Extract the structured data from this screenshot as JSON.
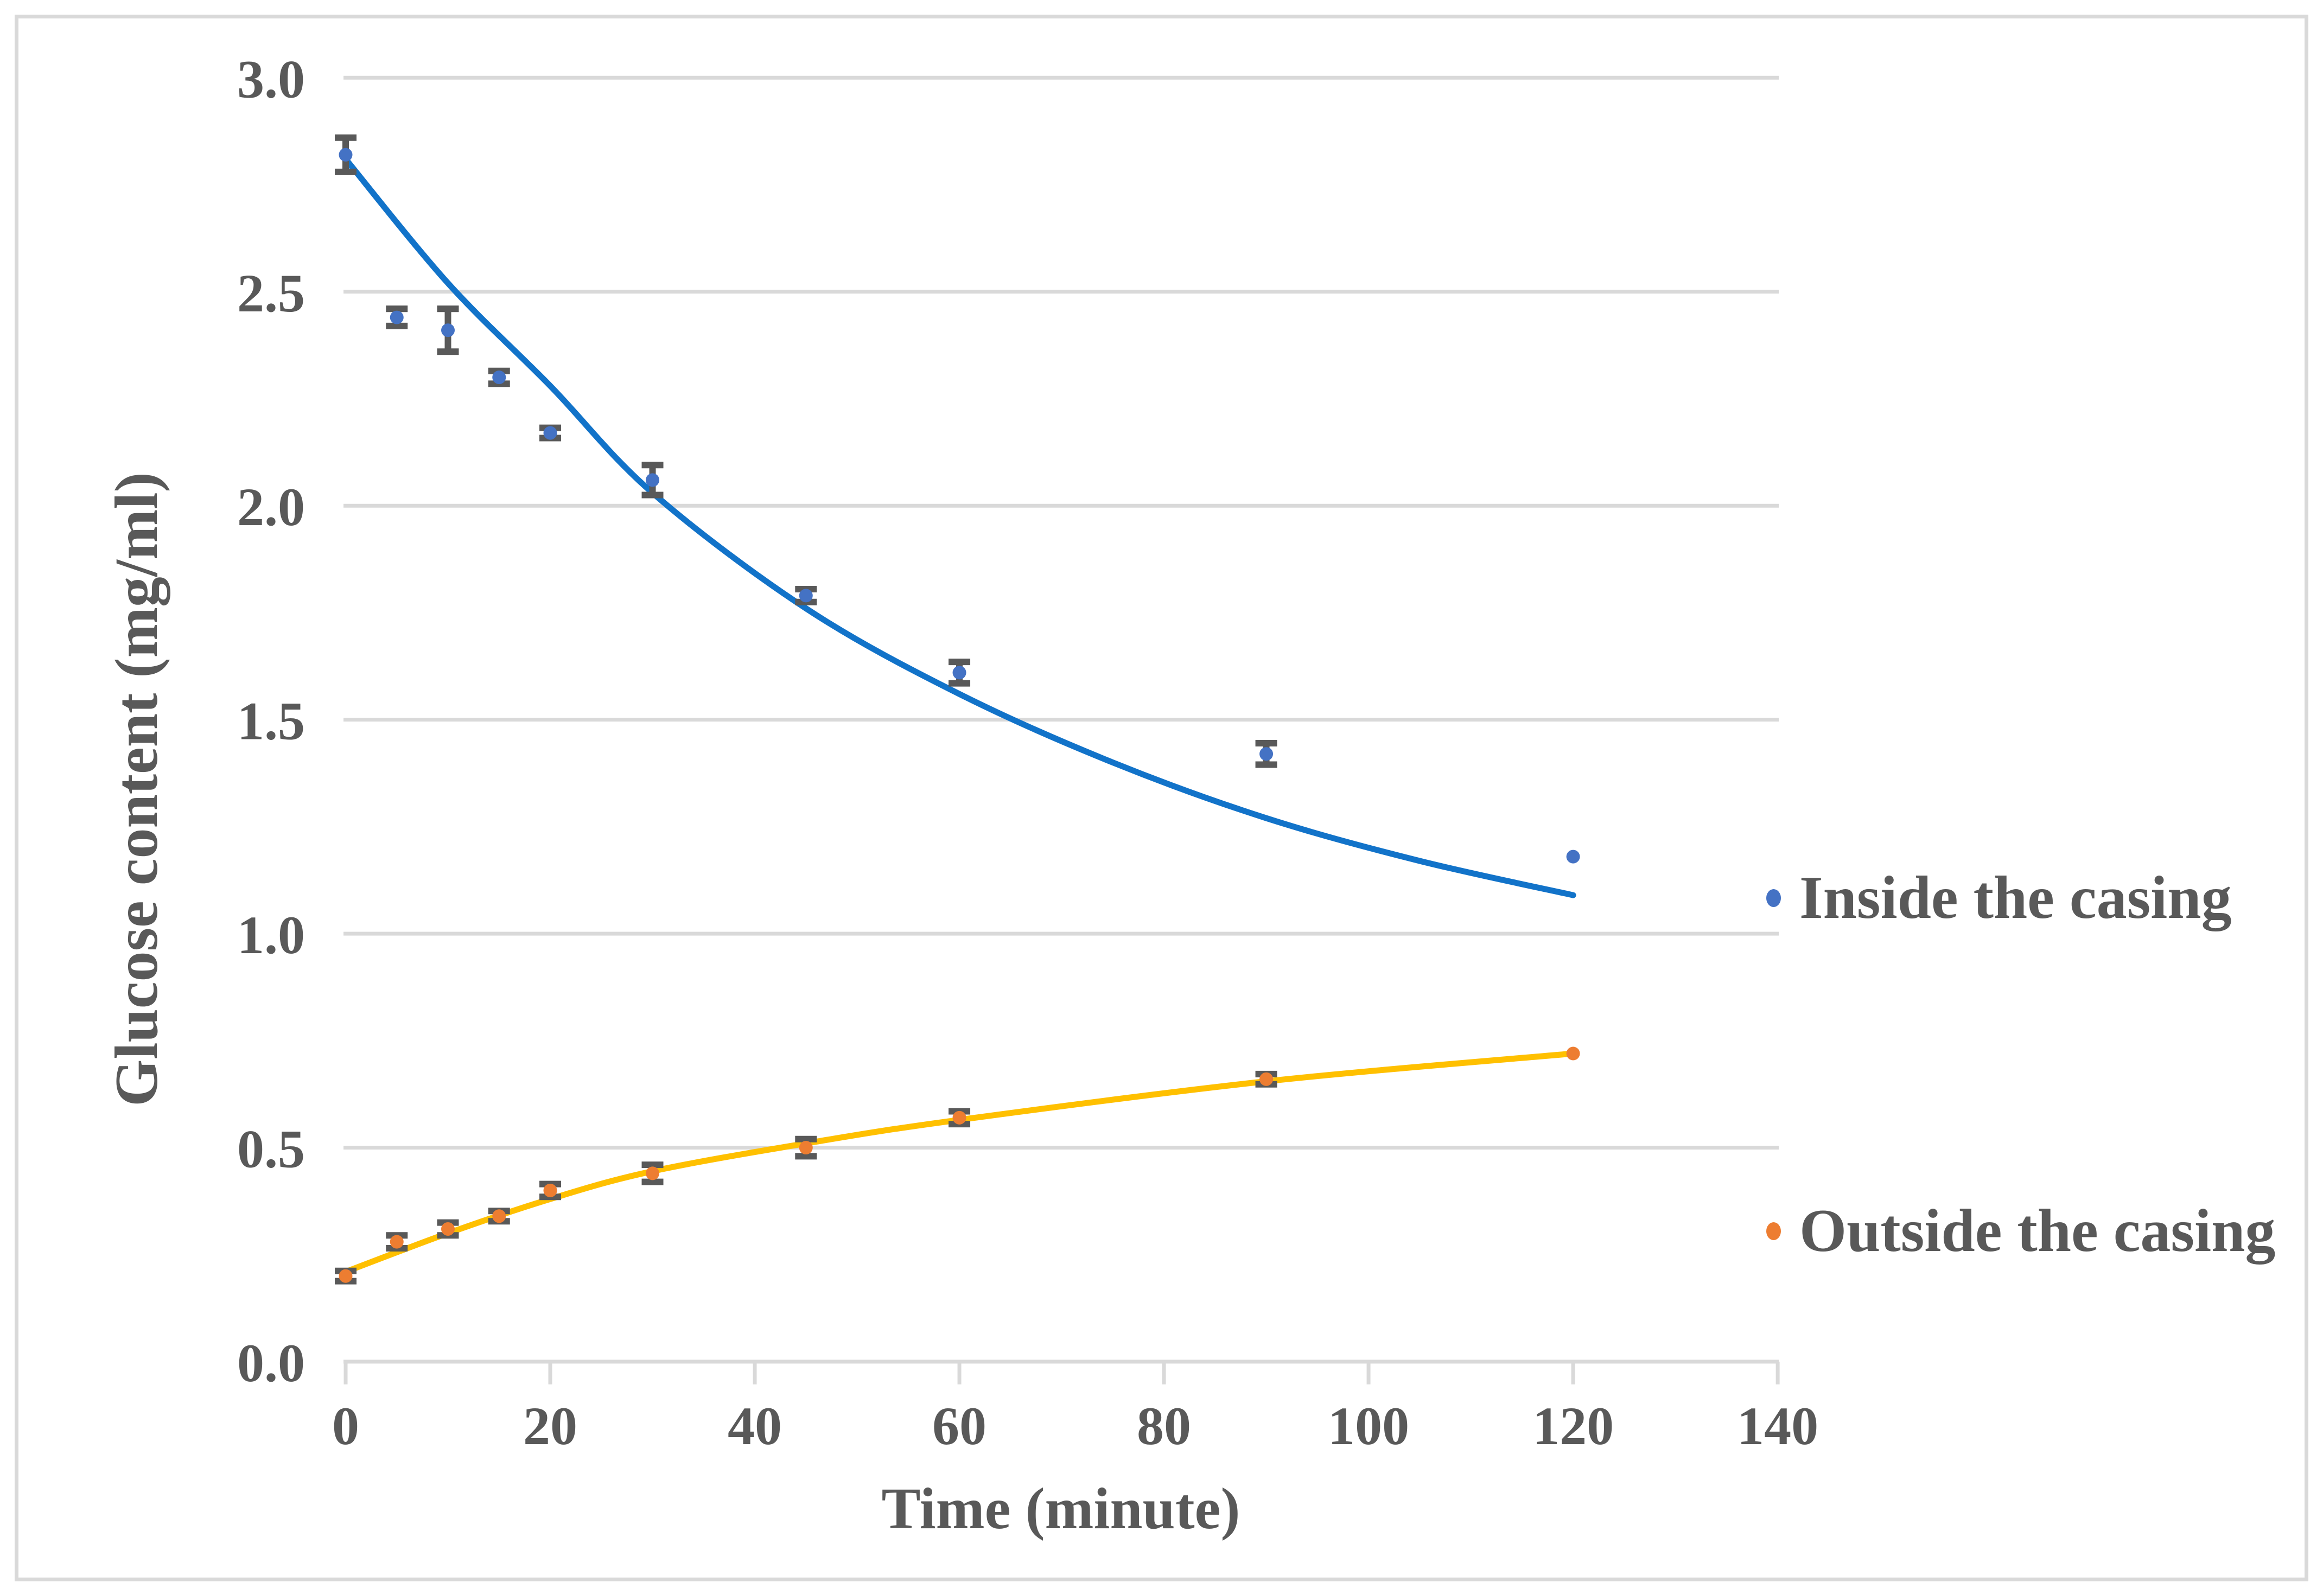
{
  "figure": {
    "background": "#ffffff",
    "border_color": "#d9d9d9"
  },
  "chart_data": {
    "type": "scatter",
    "title": "",
    "xlabel": "Time (minute)",
    "ylabel": "Glucose content (mg/ml)",
    "xlim": [
      0,
      140
    ],
    "ylim": [
      0.0,
      3.0
    ],
    "x_ticks": [
      "0",
      "20",
      "40",
      "60",
      "80",
      "100",
      "120",
      "140"
    ],
    "x_tick_values": [
      0,
      20,
      40,
      60,
      80,
      100,
      120,
      140
    ],
    "y_ticks": [
      "0.0",
      "0.5",
      "1.0",
      "1.5",
      "2.0",
      "2.5",
      "3.0"
    ],
    "y_tick_values": [
      0.0,
      0.5,
      1.0,
      1.5,
      2.0,
      2.5,
      3.0
    ],
    "grid": "horizontal-only",
    "gridline_color": "#d9d9d9",
    "axis_color": "#d9d9d9",
    "text_color": "#595959",
    "error_bar_color": "#595959",
    "legend_position": "right",
    "series": [
      {
        "name": "Inside the casing",
        "marker_color": "#4472c4",
        "trend_color": "#1273c9",
        "x": [
          0,
          5,
          10,
          15,
          20,
          30,
          45,
          60,
          90,
          120
        ],
        "y": [
          2.82,
          2.44,
          2.41,
          2.3,
          2.17,
          2.06,
          1.79,
          1.61,
          1.42,
          1.18
        ],
        "yerr": [
          0.04,
          0.02,
          0.05,
          0.015,
          0.012,
          0.035,
          0.015,
          0.025,
          0.025,
          0
        ],
        "trend": {
          "x": [
            0,
            10,
            20,
            30,
            45,
            60,
            75,
            90,
            105,
            120
          ],
          "y": [
            2.81,
            2.52,
            2.28,
            2.03,
            1.76,
            1.56,
            1.4,
            1.27,
            1.17,
            1.09
          ]
        }
      },
      {
        "name": "Outside the casing",
        "marker_color": "#ed7d31",
        "trend_color": "#ffc000",
        "x": [
          0,
          5,
          10,
          15,
          20,
          30,
          45,
          60,
          90,
          120
        ],
        "y": [
          0.2,
          0.28,
          0.31,
          0.34,
          0.4,
          0.44,
          0.5,
          0.57,
          0.66,
          0.72
        ],
        "yerr": [
          0.012,
          0.015,
          0.015,
          0.012,
          0.015,
          0.02,
          0.02,
          0.015,
          0.012,
          0
        ],
        "trend": {
          "x": [
            0,
            10,
            20,
            30,
            45,
            60,
            90,
            120
          ],
          "y": [
            0.21,
            0.3,
            0.38,
            0.445,
            0.51,
            0.565,
            0.655,
            0.72
          ]
        }
      }
    ]
  },
  "legend": {
    "items": [
      {
        "label": "Inside the casing",
        "color": "#4472c4"
      },
      {
        "label": "Outside the casing",
        "color": "#ed7d31"
      }
    ]
  }
}
